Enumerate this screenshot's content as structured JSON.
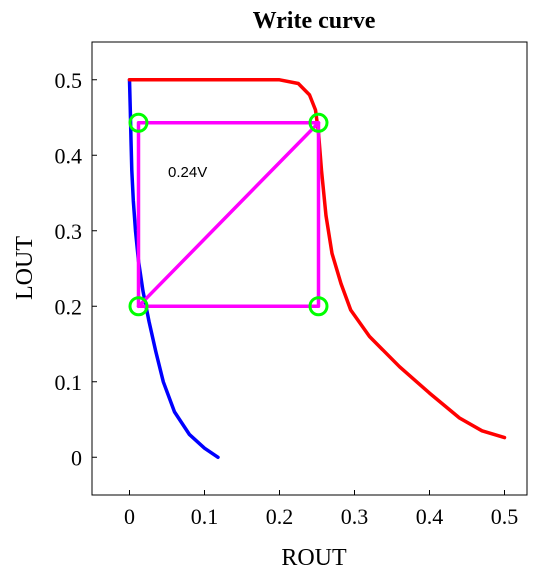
{
  "chart_data": {
    "type": "line",
    "title": "Write curve",
    "xlabel": "ROUT",
    "ylabel": "LOUT",
    "xlim": [
      -0.05,
      0.53
    ],
    "ylim": [
      -0.05,
      0.55
    ],
    "xticks": [
      "0",
      "0.1",
      "0.2",
      "0.3",
      "0.4",
      "0.5"
    ],
    "yticks": [
      "0",
      "0.1",
      "0.2",
      "0.3",
      "0.4",
      "0.5"
    ],
    "grid": false,
    "annotation": "0.24V",
    "series": [
      {
        "color": "#0000ff",
        "x": [
          0.118,
          0.1,
          0.08,
          0.06,
          0.045,
          0.035,
          0.026,
          0.018,
          0.012,
          0.008,
          0.005,
          0.003,
          0.002,
          0.001,
          0.0
        ],
        "y": [
          0.0,
          0.012,
          0.03,
          0.06,
          0.1,
          0.14,
          0.18,
          0.22,
          0.26,
          0.3,
          0.34,
          0.38,
          0.42,
          0.46,
          0.5
        ]
      },
      {
        "color": "#ff0000",
        "x": [
          0.0,
          0.1,
          0.2,
          0.225,
          0.24,
          0.248,
          0.252,
          0.256,
          0.262,
          0.27,
          0.282,
          0.295,
          0.32,
          0.36,
          0.4,
          0.44,
          0.47,
          0.5
        ],
        "y": [
          0.5,
          0.5,
          0.5,
          0.495,
          0.48,
          0.46,
          0.43,
          0.38,
          0.32,
          0.27,
          0.23,
          0.195,
          0.16,
          0.12,
          0.085,
          0.052,
          0.035,
          0.026
        ]
      },
      {
        "color": "#ff00ff",
        "x": [
          0.012,
          0.252,
          0.252,
          0.012,
          0.012,
          0.252
        ],
        "y": [
          0.443,
          0.443,
          0.2,
          0.2,
          0.443,
          0.443
        ]
      },
      {
        "color": "#ff00ff",
        "x": [
          0.012,
          0.252
        ],
        "y": [
          0.2,
          0.443
        ]
      }
    ],
    "markers": {
      "color": "#00ff00",
      "x": [
        0.012,
        0.252,
        0.012,
        0.252
      ],
      "y": [
        0.443,
        0.443,
        0.2,
        0.2
      ]
    }
  }
}
